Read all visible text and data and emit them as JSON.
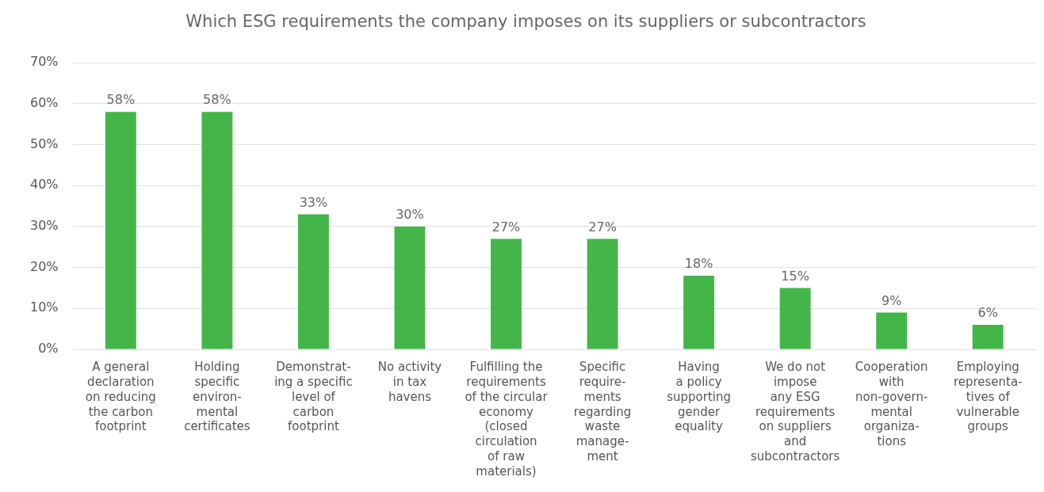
{
  "chart_data": {
    "type": "bar",
    "title": "Which ESG requirements the company imposes on its suppliers or subcontractors",
    "categories": [
      "A general\ndeclaration\non reducing\nthe carbon\nfootprint",
      "Holding\nspecific\nenviron-\nmental\ncertificates",
      "Demonstrat-\ning a specific\nlevel of\ncarbon\nfootprint",
      "No activity\nin tax\nhavens",
      "Fulfilling the\nrequirements\nof the circular\neconomy\n(closed\ncirculation\nof raw\nmaterials)",
      "Specific\nrequire-\nments\nregarding\nwaste\nmanage-\nment",
      "Having\na policy\nsupporting\ngender\nequality",
      "We do not\nimpose\nany ESG\nrequirements\non suppliers\nand\nsubcontractors",
      "Cooperation\nwith\nnon-govern-\nmental\norganiza-\ntions",
      "Employing\nrepresenta-\ntives of\nvulnerable\ngroups"
    ],
    "values": [
      58,
      58,
      33,
      30,
      27,
      27,
      18,
      15,
      9,
      6
    ],
    "value_labels": [
      "58%",
      "58%",
      "33%",
      "30%",
      "27%",
      "27%",
      "18%",
      "15%",
      "9%",
      "6%"
    ],
    "color": "#44b649",
    "ylim": [
      0,
      70
    ],
    "yticks": [
      {
        "value": 0,
        "label": "0%"
      },
      {
        "value": 10,
        "label": "10%"
      },
      {
        "value": 20,
        "label": "20%"
      },
      {
        "value": 30,
        "label": "30%"
      },
      {
        "value": 40,
        "label": "40%"
      },
      {
        "value": 50,
        "label": "50%"
      },
      {
        "value": 60,
        "label": "60%"
      },
      {
        "value": 70,
        "label": "70%"
      }
    ],
    "grid": "y",
    "legend": false
  }
}
